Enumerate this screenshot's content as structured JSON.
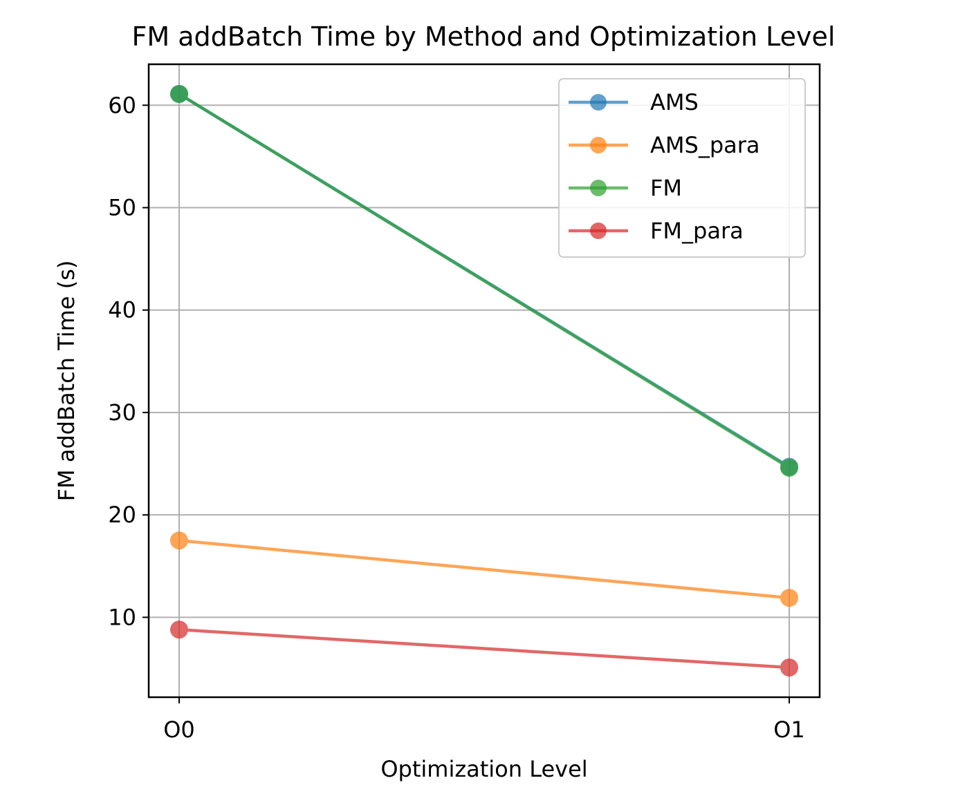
{
  "chart_data": {
    "type": "line",
    "title": "FM addBatch Time by Method and Optimization Level",
    "xlabel": "Optimization Level",
    "ylabel": "FM addBatch Time (s)",
    "categories": [
      "O0",
      "O1"
    ],
    "ylim": [
      2.2,
      64.0
    ],
    "yticks": [
      10,
      20,
      30,
      40,
      50,
      60
    ],
    "grid": true,
    "legend_position": "top-right",
    "series": [
      {
        "name": "AMS",
        "values": [
          61.1,
          24.7
        ],
        "color": "#1f77b4"
      },
      {
        "name": "AMS_para",
        "values": [
          17.5,
          11.9
        ],
        "color": "#ff7f0e"
      },
      {
        "name": "FM",
        "values": [
          61.1,
          24.6
        ],
        "color": "#2ca02c"
      },
      {
        "name": "FM_para",
        "values": [
          8.8,
          5.1
        ],
        "color": "#d62728"
      }
    ]
  }
}
